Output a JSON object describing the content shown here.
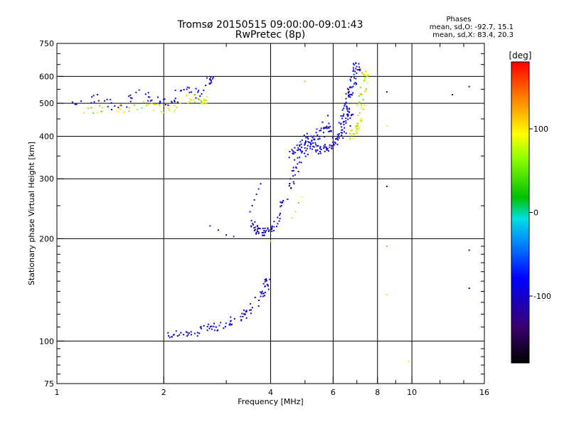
{
  "chart_data": {
    "type": "scatter",
    "title": "Tromsø 20150515 09:00:00-09:01:43",
    "subtitle": "RwPretec (8p)",
    "xlabel": "Frequency [MHz]",
    "ylabel": "Stationary phase Virtual Height [km]",
    "x_scale": "log",
    "y_scale": "log",
    "xlim": [
      1,
      16
    ],
    "ylim": [
      75,
      750
    ],
    "x_ticks": [
      1,
      2,
      4,
      6,
      8,
      10,
      16
    ],
    "x_tick_labels": [
      "1",
      "2",
      "4",
      "6",
      "8",
      "10",
      "16"
    ],
    "x_gridlines": [
      2,
      4,
      6,
      8,
      10
    ],
    "x_minor_ticks": [
      3,
      5,
      7,
      9,
      12,
      14
    ],
    "y_ticks": [
      75,
      100,
      200,
      300,
      400,
      500,
      600,
      750
    ],
    "y_tick_labels": [
      "75",
      "100",
      "200",
      "300",
      "400",
      "500",
      "600",
      "750"
    ],
    "y_gridlines": [
      100,
      200,
      300,
      400,
      500,
      600
    ],
    "y_minor_ticks": [
      80,
      85,
      90,
      95,
      110,
      120,
      130,
      140,
      150,
      160,
      170,
      180,
      190,
      250,
      350,
      450,
      550,
      650,
      700
    ],
    "grid": true,
    "color_variable": "phase [deg]",
    "colorbar": {
      "label": "[deg]",
      "range": [
        -180,
        180
      ],
      "ticks": [
        100,
        0,
        -100
      ],
      "tick_labels": [
        "100",
        "0",
        "-100"
      ]
    },
    "phase_stats": {
      "heading": "Phases",
      "o_line": "mean, sd,O: -92.7, 15.1",
      "x_line": "mean, sd,X:  83.4, 20.3"
    },
    "series": [
      {
        "mode": "O",
        "phase_mean": -92.7,
        "traces": [
          {
            "x": [
              2.05,
              2.2,
              2.4,
              2.6,
              2.8,
              3.0,
              3.2,
              3.4,
              3.6,
              3.8,
              3.9
            ],
            "y": [
              105,
              105,
              106,
              108,
              110,
              112,
              116,
              120,
              128,
              138,
              148
            ]
          },
          {
            "x": [
              2.7,
              2.85,
              3.0,
              3.15
            ],
            "y": [
              218,
              212,
              205,
              203
            ]
          },
          {
            "x": [
              3.5,
              3.55,
              3.6,
              3.65,
              3.7,
              3.75
            ],
            "y": [
              240,
              250,
              260,
              270,
              280,
              290
            ]
          },
          {
            "x": [
              3.5,
              3.6,
              3.7,
              3.8,
              3.9,
              4.0,
              4.2,
              4.4,
              4.6,
              4.8,
              5.0,
              5.2,
              5.4,
              5.6,
              5.8
            ],
            "y": [
              225,
              215,
              210,
              208,
              210,
              215,
              232,
              260,
              300,
              335,
              360,
              380,
              395,
              410,
              425
            ]
          },
          {
            "x": [
              4.5,
              4.7,
              4.9,
              5.1,
              5.3,
              5.5,
              5.7,
              5.9,
              6.1,
              6.3,
              6.5,
              6.7
            ],
            "y": [
              350,
              365,
              380,
              400,
              375,
              365,
              368,
              375,
              385,
              400,
              430,
              470
            ]
          },
          {
            "x": [
              4.8,
              5.0,
              5.2,
              5.4,
              5.6,
              5.8
            ],
            "y": [
              365,
              380,
              400,
              420,
              440,
              460
            ]
          },
          {
            "x": [
              6.3,
              6.4,
              6.5,
              6.6,
              6.7,
              6.8,
              6.9,
              7.0
            ],
            "y": [
              420,
              450,
              480,
              510,
              540,
              570,
              600,
              640
            ]
          },
          {
            "x": [
              1.1,
              1.3,
              1.5,
              1.7,
              1.9,
              2.1,
              2.3,
              2.5,
              2.7
            ],
            "y": [
              500,
              520,
              480,
              540,
              510,
              500,
              560,
              520,
              580
            ]
          },
          {
            "x": [
              8.5,
              8.5,
              13.0,
              14.5,
              14.5,
              14.5
            ],
            "y": [
              540,
              285,
              530,
              560,
              185,
              143
            ]
          }
        ]
      },
      {
        "mode": "X",
        "phase_mean": 83.4,
        "traces": [
          {
            "x": [
              6.8,
              6.9,
              7.0,
              7.1,
              7.2,
              7.3,
              7.4
            ],
            "y": [
              400,
              410,
              430,
              460,
              500,
              550,
              610
            ]
          },
          {
            "x": [
              1.2,
              1.4,
              1.6,
              1.8,
              2.0,
              2.2,
              2.4,
              2.6
            ],
            "y": [
              470,
              490,
              480,
              500,
              470,
              500,
              520,
              510
            ]
          },
          {
            "x": [
              4.6,
              4.7,
              4.8,
              4.9
            ],
            "y": [
              230,
              240,
              255,
              265
            ]
          },
          {
            "x": [
              8.5,
              8.5,
              8.5,
              9.8,
              4.0,
              5.0
            ],
            "y": [
              430,
              190,
              137,
              87,
              197,
              580
            ]
          }
        ]
      }
    ]
  }
}
